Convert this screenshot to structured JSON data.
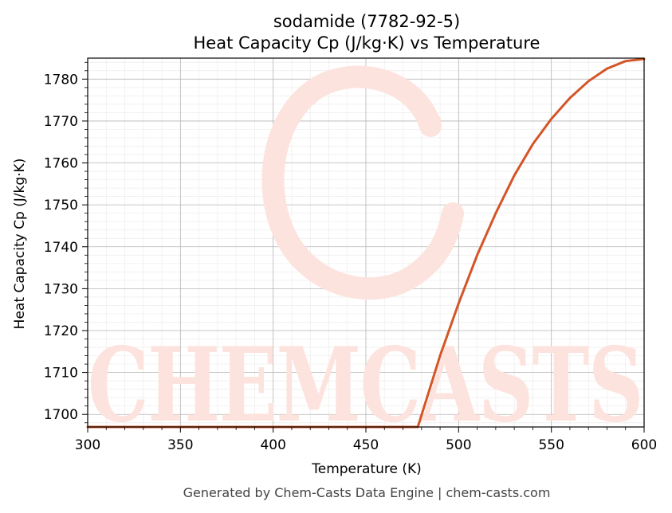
{
  "chart_data": {
    "type": "line",
    "title": "sodamide (7782-92-5)",
    "subtitle": "Heat Capacity Cp (J/kg·K) vs Temperature",
    "xlabel": "Temperature (K)",
    "ylabel": "Heat Capacity Cp (J/kg·K)",
    "xlim": [
      300,
      600
    ],
    "ylim": [
      1697,
      1785
    ],
    "xticks": [
      300,
      350,
      400,
      450,
      500,
      550,
      600
    ],
    "yticks": [
      1700,
      1710,
      1720,
      1730,
      1740,
      1750,
      1760,
      1770,
      1780
    ],
    "grid": true,
    "line_color": "#d45527",
    "series": [
      {
        "x": [
          300,
          350,
          400,
          450,
          470,
          478,
          490,
          500,
          510,
          520,
          530,
          540,
          550,
          560,
          570,
          580,
          590,
          600
        ],
        "y": [
          1697,
          1697,
          1697,
          1697,
          1697,
          1697,
          1714,
          1726.5,
          1738,
          1748,
          1757,
          1764.5,
          1770.5,
          1775.5,
          1779.5,
          1782.5,
          1784.3,
          1784.8
        ]
      }
    ]
  },
  "watermark": {
    "text": "CHEMCASTS"
  },
  "footer": "Generated by Chem-Casts Data Engine | chem-casts.com"
}
